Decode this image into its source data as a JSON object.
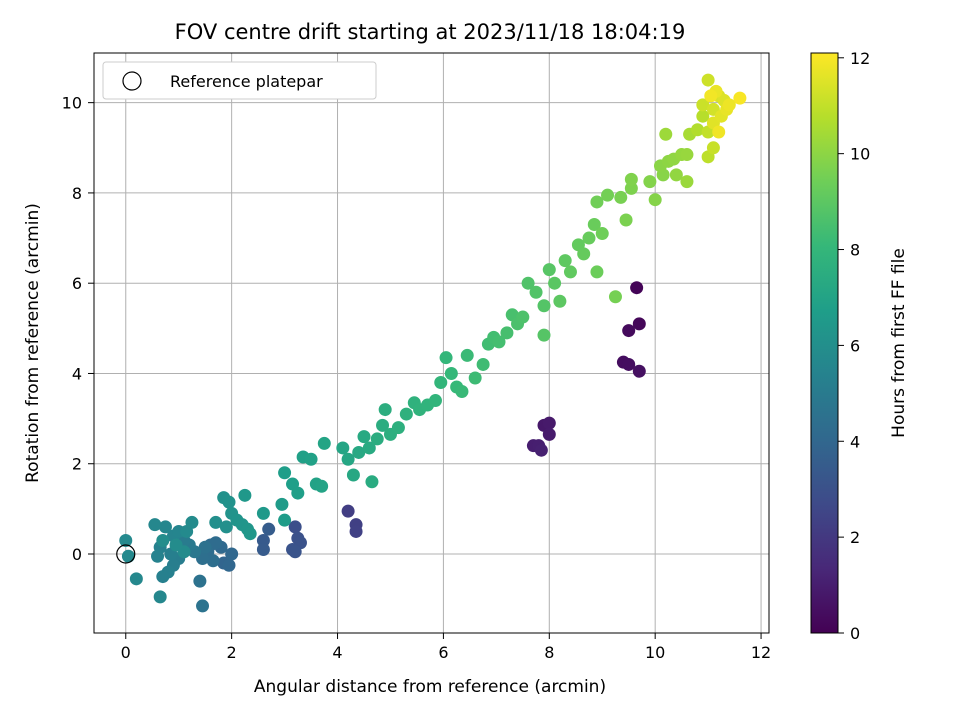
{
  "chart_data": {
    "type": "scatter",
    "title": "FOV centre drift starting at 2023/11/18 18:04:19",
    "xlabel": "Angular distance from reference (arcmin)",
    "ylabel": "Rotation from reference (arcmin)",
    "xlim": [
      -0.6,
      12.15
    ],
    "ylim": [
      -1.75,
      11.1
    ],
    "xticks": [
      "0",
      "2",
      "4",
      "6",
      "8",
      "10",
      "12"
    ],
    "yticks": [
      "0",
      "2",
      "4",
      "6",
      "8",
      "10"
    ],
    "grid": true,
    "legend": {
      "position": "top-left",
      "entries": [
        "Reference platepar"
      ]
    },
    "reference_point": {
      "x": 0,
      "y": 0
    },
    "colorbar": {
      "label": "Hours from first FF file",
      "range": [
        0,
        12.1
      ],
      "ticks": [
        "0",
        "2",
        "4",
        "6",
        "8",
        "10",
        "12"
      ],
      "colormap": "viridis"
    },
    "points": [
      {
        "x": 9.65,
        "y": 5.9,
        "c": 0.1
      },
      {
        "x": 9.7,
        "y": 5.1,
        "c": 0.2
      },
      {
        "x": 9.5,
        "y": 4.95,
        "c": 0.3
      },
      {
        "x": 9.4,
        "y": 4.25,
        "c": 0.4
      },
      {
        "x": 9.5,
        "y": 4.2,
        "c": 0.45
      },
      {
        "x": 9.7,
        "y": 4.05,
        "c": 0.5
      },
      {
        "x": 7.9,
        "y": 2.85,
        "c": 0.8
      },
      {
        "x": 8.0,
        "y": 2.9,
        "c": 0.85
      },
      {
        "x": 8.0,
        "y": 2.65,
        "c": 0.9
      },
      {
        "x": 7.7,
        "y": 2.4,
        "c": 1.0
      },
      {
        "x": 7.8,
        "y": 2.4,
        "c": 1.05
      },
      {
        "x": 7.85,
        "y": 2.3,
        "c": 1.1
      },
      {
        "x": 4.2,
        "y": 0.95,
        "c": 2.2
      },
      {
        "x": 4.35,
        "y": 0.65,
        "c": 2.3
      },
      {
        "x": 4.35,
        "y": 0.5,
        "c": 2.35
      },
      {
        "x": 3.2,
        "y": 0.6,
        "c": 2.9
      },
      {
        "x": 3.25,
        "y": 0.35,
        "c": 3.0
      },
      {
        "x": 3.3,
        "y": 0.25,
        "c": 3.05
      },
      {
        "x": 3.15,
        "y": 0.1,
        "c": 3.1
      },
      {
        "x": 3.2,
        "y": 0.05,
        "c": 3.15
      },
      {
        "x": 2.6,
        "y": 0.3,
        "c": 3.4
      },
      {
        "x": 2.6,
        "y": 0.1,
        "c": 3.45
      },
      {
        "x": 2.7,
        "y": 0.55,
        "c": 3.5
      },
      {
        "x": 1.85,
        "y": -0.2,
        "c": 3.9
      },
      {
        "x": 1.95,
        "y": -0.25,
        "c": 4.0
      },
      {
        "x": 2.0,
        "y": 0.0,
        "c": 4.05
      },
      {
        "x": 1.8,
        "y": 0.15,
        "c": 4.1
      },
      {
        "x": 1.6,
        "y": 0.2,
        "c": 4.2
      },
      {
        "x": 1.7,
        "y": 0.25,
        "c": 4.25
      },
      {
        "x": 1.55,
        "y": 0.05,
        "c": 4.3
      },
      {
        "x": 1.65,
        "y": -0.15,
        "c": 4.35
      },
      {
        "x": 1.45,
        "y": -0.1,
        "c": 4.4
      },
      {
        "x": 1.5,
        "y": 0.15,
        "c": 4.5
      },
      {
        "x": 1.4,
        "y": -0.6,
        "c": 4.55
      },
      {
        "x": 1.45,
        "y": -1.15,
        "c": 4.6
      },
      {
        "x": 1.3,
        "y": 0.05,
        "c": 4.8
      },
      {
        "x": 1.2,
        "y": 0.2,
        "c": 4.9
      },
      {
        "x": 1.1,
        "y": 0.3,
        "c": 5.0
      },
      {
        "x": 1.0,
        "y": -0.1,
        "c": 5.1
      },
      {
        "x": 0.9,
        "y": -0.25,
        "c": 5.15
      },
      {
        "x": 0.85,
        "y": 0.0,
        "c": 5.2
      },
      {
        "x": 0.8,
        "y": -0.4,
        "c": 5.25
      },
      {
        "x": 0.7,
        "y": -0.5,
        "c": 5.3
      },
      {
        "x": 0.65,
        "y": 0.15,
        "c": 5.35
      },
      {
        "x": 0.6,
        "y": -0.05,
        "c": 5.4
      },
      {
        "x": 0.9,
        "y": 0.4,
        "c": 5.45
      },
      {
        "x": 1.0,
        "y": 0.5,
        "c": 5.5
      },
      {
        "x": 0.75,
        "y": 0.6,
        "c": 5.55
      },
      {
        "x": 0.55,
        "y": 0.65,
        "c": 5.6
      },
      {
        "x": 0.65,
        "y": -0.95,
        "c": 5.6
      },
      {
        "x": 0.2,
        "y": -0.55,
        "c": 5.65
      },
      {
        "x": 0.05,
        "y": -0.05,
        "c": 5.7
      },
      {
        "x": 0.0,
        "y": 0.3,
        "c": 5.7
      },
      {
        "x": 1.15,
        "y": 0.5,
        "c": 5.75
      },
      {
        "x": 1.25,
        "y": 0.7,
        "c": 5.8
      },
      {
        "x": 1.1,
        "y": 0.05,
        "c": 5.8
      },
      {
        "x": 0.95,
        "y": 0.2,
        "c": 5.85
      },
      {
        "x": 0.7,
        "y": 0.3,
        "c": 5.9
      },
      {
        "x": 1.7,
        "y": 0.7,
        "c": 6.0
      },
      {
        "x": 1.9,
        "y": 0.6,
        "c": 6.05
      },
      {
        "x": 1.85,
        "y": 1.25,
        "c": 6.1
      },
      {
        "x": 1.95,
        "y": 1.15,
        "c": 6.15
      },
      {
        "x": 2.0,
        "y": 0.9,
        "c": 6.2
      },
      {
        "x": 2.1,
        "y": 0.75,
        "c": 6.25
      },
      {
        "x": 2.2,
        "y": 0.65,
        "c": 6.3
      },
      {
        "x": 2.3,
        "y": 0.55,
        "c": 6.35
      },
      {
        "x": 2.35,
        "y": 0.45,
        "c": 6.4
      },
      {
        "x": 2.25,
        "y": 1.3,
        "c": 6.45
      },
      {
        "x": 2.6,
        "y": 0.9,
        "c": 6.5
      },
      {
        "x": 2.95,
        "y": 1.1,
        "c": 6.6
      },
      {
        "x": 3.0,
        "y": 0.75,
        "c": 6.65
      },
      {
        "x": 3.0,
        "y": 1.8,
        "c": 6.7
      },
      {
        "x": 3.15,
        "y": 1.55,
        "c": 6.75
      },
      {
        "x": 3.25,
        "y": 1.35,
        "c": 6.8
      },
      {
        "x": 3.35,
        "y": 2.15,
        "c": 6.85
      },
      {
        "x": 3.5,
        "y": 2.1,
        "c": 6.9
      },
      {
        "x": 3.6,
        "y": 1.55,
        "c": 6.95
      },
      {
        "x": 3.7,
        "y": 1.5,
        "c": 7.0
      },
      {
        "x": 3.75,
        "y": 2.45,
        "c": 7.05
      },
      {
        "x": 4.1,
        "y": 2.35,
        "c": 7.1
      },
      {
        "x": 4.2,
        "y": 2.1,
        "c": 7.15
      },
      {
        "x": 4.3,
        "y": 1.75,
        "c": 7.2
      },
      {
        "x": 4.4,
        "y": 2.25,
        "c": 7.25
      },
      {
        "x": 4.5,
        "y": 2.6,
        "c": 7.3
      },
      {
        "x": 4.6,
        "y": 2.35,
        "c": 7.35
      },
      {
        "x": 4.65,
        "y": 1.6,
        "c": 7.4
      },
      {
        "x": 4.75,
        "y": 2.55,
        "c": 7.45
      },
      {
        "x": 4.85,
        "y": 2.85,
        "c": 7.5
      },
      {
        "x": 4.9,
        "y": 3.2,
        "c": 7.55
      },
      {
        "x": 5.0,
        "y": 2.65,
        "c": 7.6
      },
      {
        "x": 5.15,
        "y": 2.8,
        "c": 7.65
      },
      {
        "x": 5.3,
        "y": 3.1,
        "c": 7.7
      },
      {
        "x": 5.45,
        "y": 3.35,
        "c": 7.75
      },
      {
        "x": 5.55,
        "y": 3.2,
        "c": 7.8
      },
      {
        "x": 5.7,
        "y": 3.3,
        "c": 7.85
      },
      {
        "x": 5.85,
        "y": 3.4,
        "c": 7.9
      },
      {
        "x": 5.95,
        "y": 3.8,
        "c": 7.95
      },
      {
        "x": 6.05,
        "y": 4.35,
        "c": 8.0
      },
      {
        "x": 6.15,
        "y": 4.0,
        "c": 8.05
      },
      {
        "x": 6.25,
        "y": 3.7,
        "c": 8.1
      },
      {
        "x": 6.35,
        "y": 3.6,
        "c": 8.15
      },
      {
        "x": 6.45,
        "y": 4.4,
        "c": 8.2
      },
      {
        "x": 6.6,
        "y": 3.9,
        "c": 8.25
      },
      {
        "x": 6.75,
        "y": 4.2,
        "c": 8.3
      },
      {
        "x": 6.85,
        "y": 4.65,
        "c": 8.35
      },
      {
        "x": 6.95,
        "y": 4.8,
        "c": 8.4
      },
      {
        "x": 7.05,
        "y": 4.7,
        "c": 8.45
      },
      {
        "x": 7.2,
        "y": 4.9,
        "c": 8.5
      },
      {
        "x": 7.3,
        "y": 5.3,
        "c": 8.55
      },
      {
        "x": 7.4,
        "y": 5.1,
        "c": 8.6
      },
      {
        "x": 7.5,
        "y": 5.25,
        "c": 8.65
      },
      {
        "x": 7.6,
        "y": 6.0,
        "c": 8.7
      },
      {
        "x": 7.75,
        "y": 5.8,
        "c": 8.75
      },
      {
        "x": 7.9,
        "y": 5.5,
        "c": 8.8
      },
      {
        "x": 7.9,
        "y": 4.85,
        "c": 8.85
      },
      {
        "x": 8.0,
        "y": 6.3,
        "c": 8.9
      },
      {
        "x": 8.1,
        "y": 6.0,
        "c": 8.95
      },
      {
        "x": 8.2,
        "y": 5.6,
        "c": 9.0
      },
      {
        "x": 8.3,
        "y": 6.5,
        "c": 9.05
      },
      {
        "x": 8.4,
        "y": 6.25,
        "c": 9.1
      },
      {
        "x": 8.55,
        "y": 6.85,
        "c": 9.15
      },
      {
        "x": 8.65,
        "y": 6.65,
        "c": 9.2
      },
      {
        "x": 8.75,
        "y": 7.0,
        "c": 9.25
      },
      {
        "x": 8.85,
        "y": 7.3,
        "c": 9.3
      },
      {
        "x": 8.9,
        "y": 6.25,
        "c": 9.35
      },
      {
        "x": 9.0,
        "y": 7.1,
        "c": 9.4
      },
      {
        "x": 8.9,
        "y": 7.8,
        "c": 9.45
      },
      {
        "x": 9.1,
        "y": 7.95,
        "c": 9.5
      },
      {
        "x": 9.25,
        "y": 5.7,
        "c": 9.55
      },
      {
        "x": 9.35,
        "y": 7.9,
        "c": 9.6
      },
      {
        "x": 9.45,
        "y": 7.4,
        "c": 9.65
      },
      {
        "x": 9.55,
        "y": 8.1,
        "c": 9.7
      },
      {
        "x": 9.55,
        "y": 8.3,
        "c": 9.75
      },
      {
        "x": 9.9,
        "y": 8.25,
        "c": 9.8
      },
      {
        "x": 10.0,
        "y": 7.85,
        "c": 9.85
      },
      {
        "x": 10.15,
        "y": 8.4,
        "c": 9.9
      },
      {
        "x": 10.1,
        "y": 8.6,
        "c": 9.95
      },
      {
        "x": 10.25,
        "y": 8.7,
        "c": 10.0
      },
      {
        "x": 10.35,
        "y": 8.75,
        "c": 10.05
      },
      {
        "x": 10.4,
        "y": 8.4,
        "c": 10.1
      },
      {
        "x": 10.5,
        "y": 8.85,
        "c": 10.15
      },
      {
        "x": 10.6,
        "y": 8.85,
        "c": 10.2
      },
      {
        "x": 10.6,
        "y": 8.25,
        "c": 10.25
      },
      {
        "x": 10.2,
        "y": 9.3,
        "c": 10.3
      },
      {
        "x": 10.65,
        "y": 9.3,
        "c": 10.5
      },
      {
        "x": 10.8,
        "y": 9.4,
        "c": 10.7
      },
      {
        "x": 10.9,
        "y": 9.7,
        "c": 10.8
      },
      {
        "x": 11.0,
        "y": 8.8,
        "c": 10.9
      },
      {
        "x": 11.0,
        "y": 9.35,
        "c": 11.0
      },
      {
        "x": 11.1,
        "y": 9.0,
        "c": 11.1
      },
      {
        "x": 10.9,
        "y": 9.95,
        "c": 11.15
      },
      {
        "x": 11.0,
        "y": 10.5,
        "c": 11.2
      },
      {
        "x": 11.1,
        "y": 9.85,
        "c": 11.3
      },
      {
        "x": 11.2,
        "y": 10.15,
        "c": 11.4
      },
      {
        "x": 11.3,
        "y": 10.05,
        "c": 11.5
      },
      {
        "x": 11.1,
        "y": 9.55,
        "c": 11.55
      },
      {
        "x": 11.25,
        "y": 9.7,
        "c": 11.6
      },
      {
        "x": 11.35,
        "y": 9.85,
        "c": 11.7
      },
      {
        "x": 11.15,
        "y": 10.25,
        "c": 11.75
      },
      {
        "x": 11.4,
        "y": 9.95,
        "c": 11.8
      },
      {
        "x": 11.2,
        "y": 9.35,
        "c": 11.85
      },
      {
        "x": 11.05,
        "y": 10.15,
        "c": 11.9
      },
      {
        "x": 11.6,
        "y": 10.1,
        "c": 12.0
      }
    ]
  }
}
